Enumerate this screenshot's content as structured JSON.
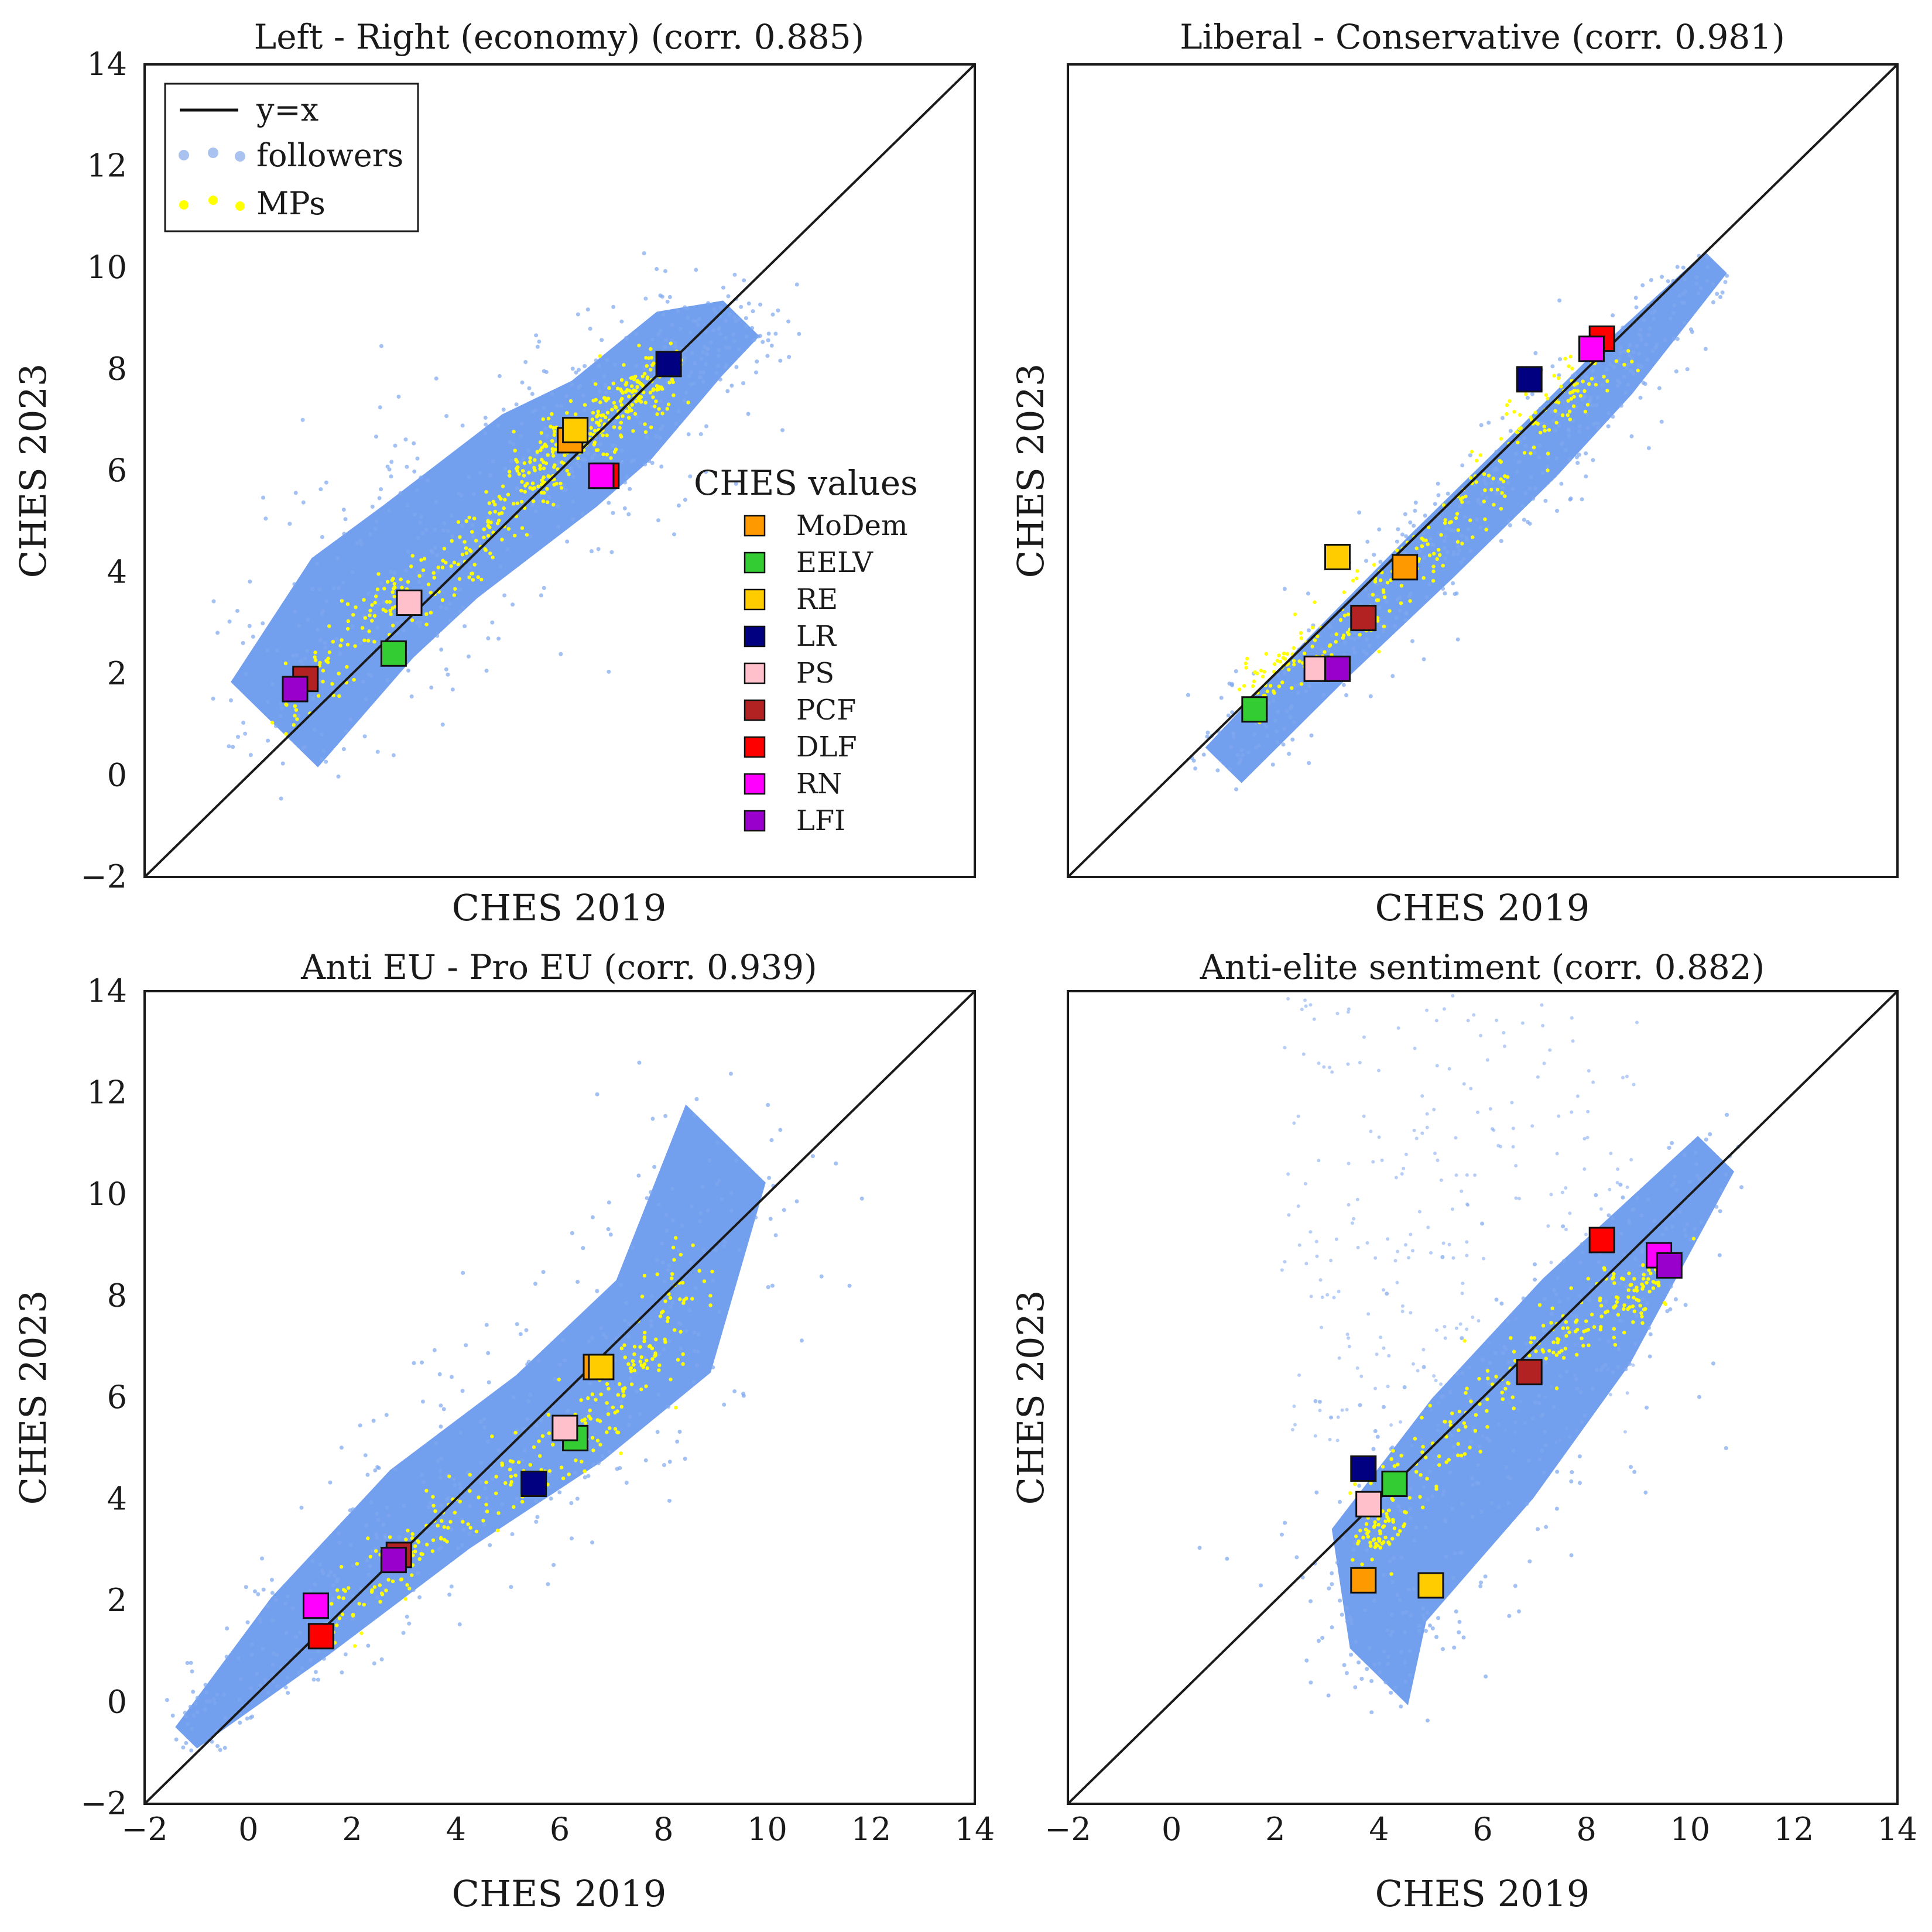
{
  "chart_data": [
    {
      "type": "scatter",
      "title": "Left - Right (economy) (corr. 0.885)",
      "xlabel": "CHES 2019",
      "ylabel": "CHES 2023",
      "xlim": [
        -2,
        14
      ],
      "ylim": [
        -2,
        14
      ],
      "xticks": [],
      "yticks": [
        "14",
        "12",
        "10",
        "8",
        "6",
        "4",
        "2",
        "0",
        "−2"
      ],
      "identity_line": true,
      "cloud": {
        "spine": [
          [
            0.5,
            1.0
          ],
          [
            2.2,
            3.3
          ],
          [
            3.5,
            4.4
          ],
          [
            5.8,
            6.2
          ],
          [
            7.0,
            7.0
          ],
          [
            8.5,
            8.5
          ],
          [
            9.5,
            9.0
          ]
        ],
        "width": [
          1.2,
          1.4,
          1.3,
          1.3,
          1.1,
          0.9,
          0.5
        ]
      },
      "mps": [
        [
          0.5,
          1.0
        ],
        [
          2.5,
          3.2
        ],
        [
          4.0,
          4.2
        ],
        [
          5.5,
          5.8
        ],
        [
          6.0,
          6.5
        ],
        [
          6.8,
          7.0
        ],
        [
          7.5,
          7.5
        ],
        [
          8.0,
          8.0
        ]
      ],
      "parties": [
        {
          "name": "MoDem",
          "x": 6.2,
          "y": 6.6
        },
        {
          "name": "EELV",
          "x": 2.8,
          "y": 2.4
        },
        {
          "name": "RE",
          "x": 6.3,
          "y": 6.8
        },
        {
          "name": "LR",
          "x": 8.1,
          "y": 8.1
        },
        {
          "name": "PS",
          "x": 3.1,
          "y": 3.4
        },
        {
          "name": "PCF",
          "x": 1.1,
          "y": 1.9
        },
        {
          "name": "DLF",
          "x": 6.9,
          "y": 5.9
        },
        {
          "name": "RN",
          "x": 6.8,
          "y": 5.9
        },
        {
          "name": "LFI",
          "x": 0.9,
          "y": 1.7
        }
      ]
    },
    {
      "type": "scatter",
      "title": "Liberal - Conservative (corr. 0.981)",
      "xlabel": "CHES 2019",
      "ylabel": "CHES 2023",
      "xlim": [
        -2,
        14
      ],
      "ylim": [
        -2,
        14
      ],
      "xticks": [],
      "yticks": [],
      "identity_line": true,
      "cloud": {
        "spine": [
          [
            1.0,
            0.2
          ],
          [
            3.0,
            2.3
          ],
          [
            5.0,
            4.3
          ],
          [
            7.0,
            6.3
          ],
          [
            8.5,
            7.9
          ],
          [
            10.5,
            10.1
          ]
        ],
        "width": [
          0.5,
          0.55,
          0.6,
          0.6,
          0.55,
          0.3
        ]
      },
      "mps": [
        [
          1.5,
          1.6
        ],
        [
          3.0,
          2.6
        ],
        [
          5.0,
          4.6
        ],
        [
          7.0,
          6.8
        ],
        [
          8.5,
          8.5
        ]
      ],
      "parties": [
        {
          "name": "MoDem",
          "x": 4.5,
          "y": 4.1
        },
        {
          "name": "EELV",
          "x": 1.6,
          "y": 1.3
        },
        {
          "name": "RE",
          "x": 3.2,
          "y": 4.3
        },
        {
          "name": "LR",
          "x": 6.9,
          "y": 7.8
        },
        {
          "name": "PS",
          "x": 2.8,
          "y": 2.1
        },
        {
          "name": "PCF",
          "x": 3.7,
          "y": 3.1
        },
        {
          "name": "DLF",
          "x": 8.3,
          "y": 8.6
        },
        {
          "name": "RN",
          "x": 8.1,
          "y": 8.4
        },
        {
          "name": "LFI",
          "x": 3.2,
          "y": 2.1
        }
      ]
    },
    {
      "type": "scatter",
      "title": "Anti EU - Pro EU (corr. 0.939)",
      "xlabel": "CHES 2019",
      "ylabel": "CHES 2023",
      "xlim": [
        -2,
        14
      ],
      "ylim": [
        -2,
        14
      ],
      "xticks": [
        "−2",
        "0",
        "2",
        "4",
        "6",
        "8",
        "10",
        "12",
        "14"
      ],
      "yticks": [
        "14",
        "12",
        "10",
        "8",
        "6",
        "4",
        "2",
        "0",
        "−2"
      ],
      "identity_line": true,
      "cloud": {
        "spine": [
          [
            -1.2,
            -0.7
          ],
          [
            1.0,
            1.5
          ],
          [
            3.5,
            3.8
          ],
          [
            6.0,
            5.6
          ],
          [
            8.0,
            7.4
          ],
          [
            9.2,
            11.0
          ]
        ],
        "width": [
          0.3,
          0.8,
          1.1,
          1.2,
          1.3,
          1.1
        ]
      },
      "mps": [
        [
          1.5,
          1.5
        ],
        [
          3.5,
          3.4
        ],
        [
          6.0,
          5.0
        ],
        [
          7.5,
          6.5
        ],
        [
          8.5,
          8.5
        ]
      ],
      "parties": [
        {
          "name": "MoDem",
          "x": 6.7,
          "y": 6.6
        },
        {
          "name": "EELV",
          "x": 6.3,
          "y": 5.2
        },
        {
          "name": "RE",
          "x": 6.8,
          "y": 6.6
        },
        {
          "name": "LR",
          "x": 5.5,
          "y": 4.3
        },
        {
          "name": "PS",
          "x": 6.1,
          "y": 5.4
        },
        {
          "name": "PCF",
          "x": 2.9,
          "y": 2.9
        },
        {
          "name": "DLF",
          "x": 1.4,
          "y": 1.3
        },
        {
          "name": "RN",
          "x": 1.3,
          "y": 1.9
        },
        {
          "name": "LFI",
          "x": 2.8,
          "y": 2.8
        }
      ]
    },
    {
      "type": "scatter",
      "title": "Anti-elite sentiment (corr. 0.882)",
      "xlabel": "CHES 2019",
      "ylabel": "CHES 2023",
      "xlim": [
        -2,
        14
      ],
      "ylim": [
        -2,
        14
      ],
      "xticks": [
        "−2",
        "0",
        "2",
        "4",
        "6",
        "8",
        "10",
        "12",
        "14"
      ],
      "yticks": [],
      "identity_line": true,
      "cloud": {
        "spine": [
          [
            4.0,
            0.5
          ],
          [
            4.0,
            2.5
          ],
          [
            6.0,
            5.0
          ],
          [
            8.0,
            7.5
          ],
          [
            10.5,
            10.8
          ]
        ],
        "width": [
          0.8,
          1.3,
          1.4,
          1.2,
          0.5
        ]
      },
      "mps": [
        [
          3.8,
          3.0
        ],
        [
          4.2,
          4.0
        ],
        [
          6.5,
          6.5
        ],
        [
          8.5,
          7.8
        ],
        [
          9.5,
          8.5
        ]
      ],
      "parties": [
        {
          "name": "MoDem",
          "x": 3.7,
          "y": 2.4
        },
        {
          "name": "EELV",
          "x": 4.3,
          "y": 4.3
        },
        {
          "name": "RE",
          "x": 5.0,
          "y": 2.3
        },
        {
          "name": "LR",
          "x": 3.7,
          "y": 4.6
        },
        {
          "name": "PS",
          "x": 3.8,
          "y": 3.9
        },
        {
          "name": "PCF",
          "x": 6.9,
          "y": 6.5
        },
        {
          "name": "DLF",
          "x": 8.3,
          "y": 9.1
        },
        {
          "name": "RN",
          "x": 9.4,
          "y": 8.8
        },
        {
          "name": "LFI",
          "x": 9.6,
          "y": 8.6
        }
      ]
    }
  ],
  "legend": {
    "items": [
      {
        "label": "y=x",
        "kind": "line",
        "color": "#111111"
      },
      {
        "label": "followers",
        "kind": "dots",
        "color": "#a9c2f0"
      },
      {
        "label": "MPs",
        "kind": "dots",
        "color": "#ffff00"
      }
    ]
  },
  "ches_legend": {
    "title": "CHES values",
    "items": [
      {
        "label": "MoDem",
        "color": "#ff9900"
      },
      {
        "label": "EELV",
        "color": "#33cc33"
      },
      {
        "label": "RE",
        "color": "#ffcc00"
      },
      {
        "label": "LR",
        "color": "#000080"
      },
      {
        "label": "PS",
        "color": "#ffc0cb"
      },
      {
        "label": "PCF",
        "color": "#b22222"
      },
      {
        "label": "DLF",
        "color": "#ff0000"
      },
      {
        "label": "RN",
        "color": "#ff00ff"
      },
      {
        "label": "LFI",
        "color": "#9900cc"
      }
    ]
  },
  "colors": {
    "followers": "#6495ed",
    "mps": "#ffff00",
    "axes": "#1a1a1a"
  }
}
